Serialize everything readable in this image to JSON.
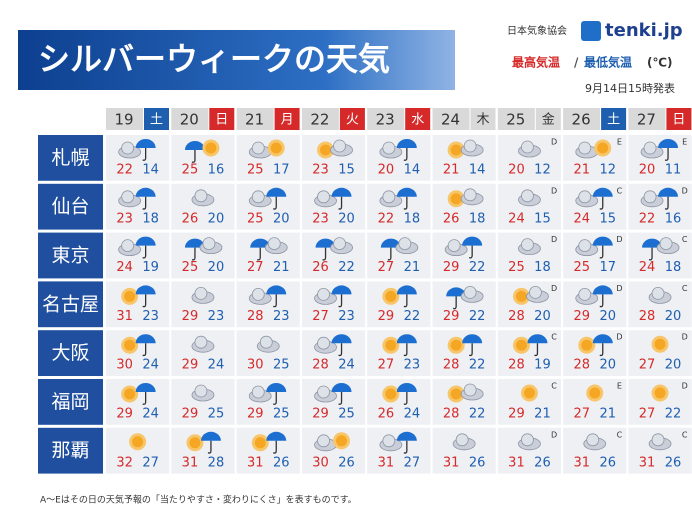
{
  "header": {
    "title": "シルバーウィークの天気",
    "organization": "日本気象協会",
    "brand": "tenki.jp",
    "legend": {
      "high": "最高気温",
      "separator": "/",
      "low": "最低気温",
      "unit": "(℃)"
    },
    "issued": "9月14日15時発表"
  },
  "days": [
    {
      "date": "19",
      "weekday": "土",
      "color": "#1f5fb0"
    },
    {
      "date": "20",
      "weekday": "日",
      "color": "#d62a2a"
    },
    {
      "date": "21",
      "weekday": "月",
      "color": "#d62a2a"
    },
    {
      "date": "22",
      "weekday": "火",
      "color": "#d62a2a"
    },
    {
      "date": "23",
      "weekday": "水",
      "color": "#d62a2a"
    },
    {
      "date": "24",
      "weekday": "木",
      "color": "#d9d9d9"
    },
    {
      "date": "25",
      "weekday": "金",
      "color": "#d9d9d9"
    },
    {
      "date": "26",
      "weekday": "土",
      "color": "#1f5fb0"
    },
    {
      "date": "27",
      "weekday": "日",
      "color": "#d62a2a"
    }
  ],
  "cities": [
    {
      "name": "札幌",
      "forecast": [
        {
          "high": 22,
          "low": 14
        },
        {
          "high": 25,
          "low": 16
        },
        {
          "high": 25,
          "low": 17
        },
        {
          "high": 23,
          "low": 15
        },
        {
          "high": 20,
          "low": 14
        },
        {
          "high": 21,
          "low": 14
        },
        {
          "high": 20,
          "low": 12,
          "reliability": "D"
        },
        {
          "high": 21,
          "low": 12,
          "reliability": "E"
        },
        {
          "high": 20,
          "low": 11,
          "reliability": "E"
        }
      ]
    },
    {
      "name": "仙台",
      "forecast": [
        {
          "high": 23,
          "low": 18
        },
        {
          "high": 26,
          "low": 20
        },
        {
          "high": 25,
          "low": 20
        },
        {
          "high": 23,
          "low": 20
        },
        {
          "high": 22,
          "low": 18
        },
        {
          "high": 26,
          "low": 18
        },
        {
          "high": 24,
          "low": 15,
          "reliability": "D"
        },
        {
          "high": 24,
          "low": 15,
          "reliability": "C"
        },
        {
          "high": 22,
          "low": 16,
          "reliability": "D"
        }
      ]
    },
    {
      "name": "東京",
      "forecast": [
        {
          "high": 24,
          "low": 19
        },
        {
          "high": 25,
          "low": 20
        },
        {
          "high": 27,
          "low": 21
        },
        {
          "high": 26,
          "low": 22
        },
        {
          "high": 27,
          "low": 21
        },
        {
          "high": 29,
          "low": 22
        },
        {
          "high": 25,
          "low": 18,
          "reliability": "D"
        },
        {
          "high": 25,
          "low": 17,
          "reliability": "D"
        },
        {
          "high": 24,
          "low": 18,
          "reliability": "C"
        }
      ]
    },
    {
      "name": "名古屋",
      "forecast": [
        {
          "high": 31,
          "low": 23
        },
        {
          "high": 29,
          "low": 23
        },
        {
          "high": 28,
          "low": 23
        },
        {
          "high": 27,
          "low": 23
        },
        {
          "high": 29,
          "low": 22
        },
        {
          "high": 29,
          "low": 22
        },
        {
          "high": 28,
          "low": 20,
          "reliability": "D"
        },
        {
          "high": 29,
          "low": 20,
          "reliability": "D"
        },
        {
          "high": 28,
          "low": 20,
          "reliability": "C"
        }
      ]
    },
    {
      "name": "大阪",
      "forecast": [
        {
          "high": 30,
          "low": 24
        },
        {
          "high": 29,
          "low": 24
        },
        {
          "high": 30,
          "low": 25
        },
        {
          "high": 28,
          "low": 24
        },
        {
          "high": 27,
          "low": 23
        },
        {
          "high": 28,
          "low": 22
        },
        {
          "high": 28,
          "low": 19,
          "reliability": "C"
        },
        {
          "high": 28,
          "low": 20,
          "reliability": "D"
        },
        {
          "high": 27,
          "low": 20,
          "reliability": "D"
        }
      ]
    },
    {
      "name": "福岡",
      "forecast": [
        {
          "high": 29,
          "low": 24
        },
        {
          "high": 29,
          "low": 25
        },
        {
          "high": 29,
          "low": 25
        },
        {
          "high": 29,
          "low": 25
        },
        {
          "high": 26,
          "low": 24
        },
        {
          "high": 28,
          "low": 22
        },
        {
          "high": 29,
          "low": 21,
          "reliability": "C"
        },
        {
          "high": 27,
          "low": 21,
          "reliability": "E"
        },
        {
          "high": 27,
          "low": 22,
          "reliability": "D"
        }
      ]
    },
    {
      "name": "那覇",
      "forecast": [
        {
          "high": 32,
          "low": 27
        },
        {
          "high": 31,
          "low": 28
        },
        {
          "high": 31,
          "low": 26
        },
        {
          "high": 30,
          "low": 26
        },
        {
          "high": 31,
          "low": 27
        },
        {
          "high": 31,
          "low": 26
        },
        {
          "high": 31,
          "low": 26,
          "reliability": "D"
        },
        {
          "high": 31,
          "low": 26,
          "reliability": "C"
        },
        {
          "high": 31,
          "low": 26,
          "reliability": "C"
        }
      ]
    }
  ],
  "footnote": "A～Eはその日の天気予報の「当たりやすさ・変わりにくさ」を表すものです。"
}
